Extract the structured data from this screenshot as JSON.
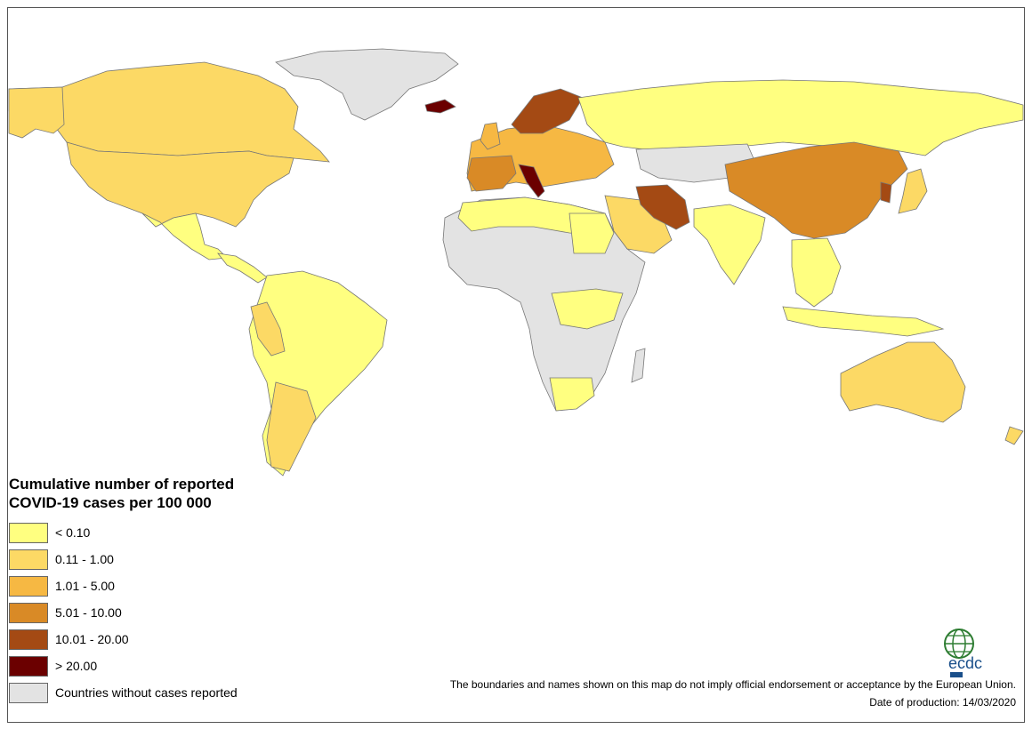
{
  "legend": {
    "title_line1": "Cumulative number of reported",
    "title_line2": "COVID-19 cases per 100 000",
    "items": [
      {
        "label": "< 0.10",
        "color": "#FFFF80"
      },
      {
        "label": "0.11 - 1.00",
        "color": "#FCD965"
      },
      {
        "label": "1.01 - 5.00",
        "color": "#F6B843"
      },
      {
        "label": "5.01 - 10.00",
        "color": "#D98A26"
      },
      {
        "label": "10.01 - 20.00",
        "color": "#A44A14"
      },
      {
        "label": "> 20.00",
        "color": "#6B0000"
      },
      {
        "label": "Countries without cases reported",
        "color": "#E3E3E3"
      }
    ]
  },
  "footer": {
    "disclaimer": "The boundaries and names shown on this map do not imply official endorsement or acceptance by the European Union.",
    "date": "Date of production: 14/03/2020"
  },
  "logo": {
    "text": "ecdc",
    "icon": "globe-icon"
  },
  "colors": {
    "border": "#555555",
    "ocean": "#FFFFFF"
  }
}
